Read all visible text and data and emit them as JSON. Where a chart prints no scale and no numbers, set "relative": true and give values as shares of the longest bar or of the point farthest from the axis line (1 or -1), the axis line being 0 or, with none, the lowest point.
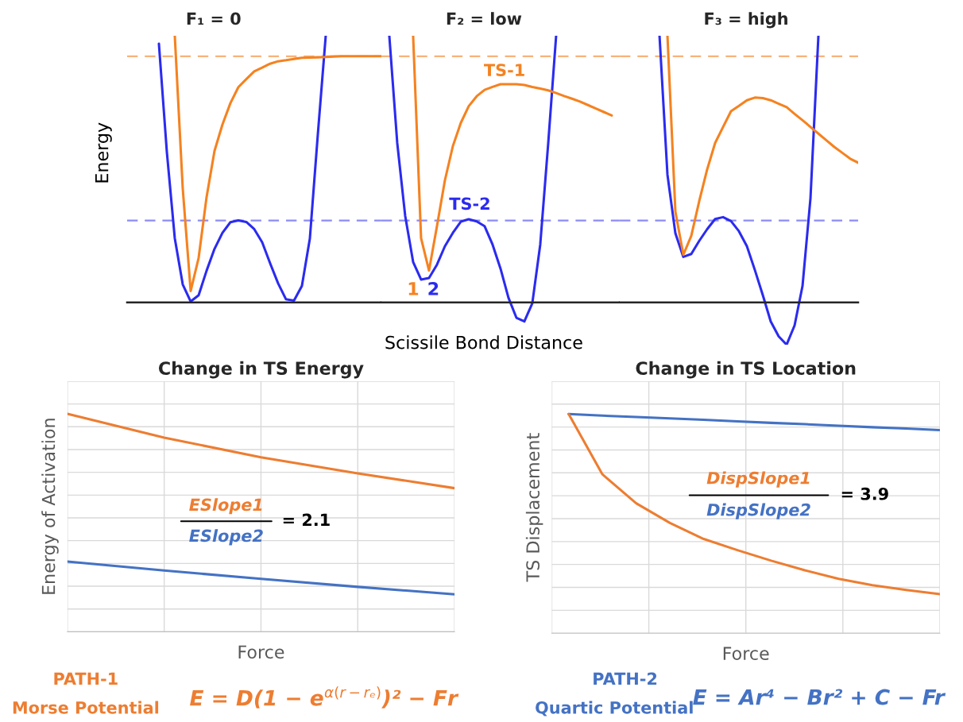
{
  "chart_data": [
    {
      "type": "line",
      "relative": true,
      "title": "F₁ = 0",
      "ylabel": "Energy",
      "tick_labels": false,
      "categories": [
        null,
        null,
        null,
        null,
        null,
        null,
        null,
        null,
        null,
        null,
        null,
        null,
        null,
        null,
        null,
        null,
        null,
        null,
        null,
        null,
        null,
        null,
        null,
        null,
        null,
        null,
        null,
        null,
        null,
        null,
        null,
        null,
        null
      ],
      "series": [
        {
          "color": "#2b2bf0",
          "values": [
            null,
            null,
            null,
            null,
            0.97,
            0.565,
            0.241,
            0.068,
            0.004,
            0.027,
            0.119,
            0.201,
            0.261,
            0.301,
            0.308,
            0.302,
            0.275,
            0.226,
            0.147,
            0.072,
            0.012,
            0.007,
            0.062,
            0.239,
            0.628,
            1.0,
            null,
            null,
            null,
            null,
            null,
            null,
            null
          ]
        },
        {
          "color": "#f58220",
          "values": [
            null,
            null,
            null,
            null,
            null,
            null,
            1.0,
            0.428,
            0.043,
            0.167,
            0.395,
            0.568,
            0.667,
            0.747,
            0.807,
            0.837,
            0.866,
            0.88,
            0.895,
            0.904,
            0.908,
            0.913,
            0.917,
            0.918,
            0.919,
            0.92,
            0.922,
            0.923,
            0.923,
            0.923,
            0.923,
            0.923,
            0.923
          ]
        }
      ],
      "ref_lines": [
        {
          "axis": "y",
          "value": 0.923,
          "color": "#f9b27a",
          "line_style": "dashed"
        },
        {
          "axis": "y",
          "value": 0.307,
          "color": "#8c8cf5",
          "line_style": "dashed"
        }
      ]
    },
    {
      "type": "line",
      "relative": true,
      "title": "F₂ = low",
      "xlabel": "Scissile Bond Distance",
      "tick_labels": false,
      "categories": [
        null,
        null,
        null,
        null,
        null,
        null,
        null,
        null,
        null,
        null,
        null,
        null,
        null,
        null,
        null,
        null,
        null,
        null,
        null,
        null,
        null,
        null,
        null,
        null,
        null,
        null,
        null,
        null,
        null,
        null,
        null
      ],
      "series": [
        {
          "color": "#2b2bf0",
          "values": [
            null,
            1.0,
            0.598,
            0.325,
            0.152,
            0.086,
            0.092,
            0.142,
            0.211,
            0.261,
            0.303,
            0.312,
            0.304,
            0.286,
            0.217,
            0.127,
            0.018,
            -0.057,
            -0.071,
            -0.003,
            0.217,
            0.595,
            1.0,
            null,
            null,
            null,
            null,
            null,
            null,
            null,
            null
          ]
        },
        {
          "color": "#f58220",
          "values": [
            null,
            null,
            null,
            null,
            1.0,
            0.241,
            0.12,
            0.286,
            0.458,
            0.586,
            0.673,
            0.736,
            0.773,
            0.797,
            0.808,
            0.818,
            0.818,
            0.818,
            0.815,
            0.808,
            0.802,
            0.795,
            0.785,
            0.774,
            0.764,
            0.753,
            0.74,
            0.727,
            0.714,
            0.701,
            null
          ]
        }
      ],
      "ref_lines": [
        {
          "axis": "y",
          "value": 0.923,
          "color": "#f9b27a",
          "line_style": "dashed"
        },
        {
          "axis": "y",
          "value": 0.307,
          "color": "#8c8cf5",
          "line_style": "dashed"
        }
      ],
      "annotations": [
        "TS-1",
        "TS-2",
        "1",
        "2"
      ]
    },
    {
      "type": "line",
      "relative": true,
      "title": "F₃ = high",
      "tick_labels": false,
      "categories": [
        null,
        null,
        null,
        null,
        null,
        null,
        null,
        null,
        null,
        null,
        null,
        null,
        null,
        null,
        null,
        null,
        null,
        null,
        null,
        null,
        null,
        null,
        null,
        null,
        null,
        null,
        null,
        null,
        null,
        null,
        null
      ],
      "series": [
        {
          "color": "#2b2bf0",
          "values": [
            null,
            null,
            null,
            null,
            null,
            1.0,
            0.479,
            0.259,
            0.171,
            0.182,
            0.231,
            0.275,
            0.313,
            0.32,
            0.305,
            0.267,
            0.211,
            0.122,
            0.028,
            -0.071,
            -0.127,
            -0.158,
            -0.086,
            0.062,
            0.39,
            1.0,
            null,
            null,
            null,
            null,
            null
          ]
        },
        {
          "color": "#f58220",
          "values": [
            null,
            null,
            null,
            null,
            null,
            null,
            1.0,
            0.34,
            0.179,
            0.25,
            0.38,
            0.499,
            0.598,
            0.658,
            0.717,
            0.737,
            0.758,
            0.768,
            0.766,
            0.758,
            0.745,
            0.732,
            0.707,
            0.683,
            0.658,
            0.633,
            0.608,
            0.583,
            0.561,
            0.539,
            0.524
          ]
        }
      ],
      "ref_lines": [
        {
          "axis": "y",
          "value": 0.923,
          "color": "#f9b27a",
          "line_style": "dashed"
        },
        {
          "axis": "y",
          "value": 0.307,
          "color": "#8c8cf5",
          "line_style": "dashed"
        }
      ]
    },
    {
      "type": "line",
      "relative": true,
      "title": "Change in TS Energy",
      "xlabel": "Force",
      "ylabel": "Energy of Activation",
      "tick_labels": false,
      "grid": true,
      "categories": [
        null,
        null,
        null,
        null,
        null
      ],
      "series": [
        {
          "color": "#ed7d31",
          "values": [
            1.0,
            0.891,
            0.801,
            0.727,
            0.659
          ]
        },
        {
          "color": "#4472c4",
          "values": [
            0.322,
            0.281,
            0.243,
            0.206,
            0.172
          ]
        }
      ],
      "annotations": [
        "ESlope1",
        "ESlope2",
        "= 2.1",
        "PATH-1",
        "Morse Potential",
        "E = D(1 − e$^{α(r−rₑ)}$)² − Fr"
      ]
    },
    {
      "type": "line",
      "relative": true,
      "title": "Change in TS Location",
      "xlabel": "Force",
      "ylabel": "TS Displacement",
      "tick_labels": false,
      "grid": true,
      "categories": [
        null,
        null,
        null,
        null,
        null,
        null,
        null,
        null,
        null,
        null,
        null,
        null
      ],
      "series": [
        {
          "color": "#4472c4",
          "values": [
            1.0,
            0.993,
            0.987,
            0.98,
            0.974,
            0.967,
            0.96,
            0.954,
            0.947,
            0.94,
            0.934,
            0.927
          ]
        },
        {
          "color": "#ed7d31",
          "values": [
            1.0,
            0.725,
            0.593,
            0.503,
            0.43,
            0.379,
            0.331,
            0.287,
            0.248,
            0.219,
            0.197,
            0.178
          ]
        }
      ],
      "annotations": [
        "DispSlope1",
        "DispSlope2",
        "= 3.9",
        "PATH-2",
        "Quartic Potential",
        "E = Ar⁴ − Br² + C − Fr"
      ]
    }
  ]
}
